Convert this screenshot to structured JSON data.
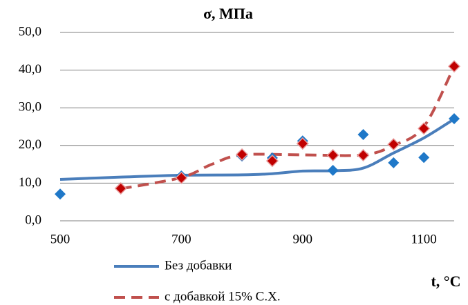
{
  "chart_data": {
    "type": "scatter",
    "title": "σ, МПа",
    "x_label": "t, °C",
    "xlim": [
      500,
      1150
    ],
    "xticks": [
      500,
      700,
      900,
      1100
    ],
    "ylim": [
      0,
      50
    ],
    "yticks": [
      {
        "value": 0,
        "label": "0,0"
      },
      {
        "value": 10,
        "label": "10,0"
      },
      {
        "value": 20,
        "label": "20,0"
      },
      {
        "value": 30,
        "label": "30,0"
      },
      {
        "value": 40,
        "label": "40,0"
      },
      {
        "value": 50,
        "label": "50,0"
      }
    ],
    "grid": true,
    "series": [
      {
        "name": "Без добавки",
        "color": "#4a7ebb",
        "style": "solid",
        "x": [
          500,
          600,
          700,
          800,
          850,
          900,
          950,
          1000,
          1050,
          1100,
          1150
        ],
        "values": [
          11.0,
          11.6,
          12.1,
          12.2,
          12.5,
          13.2,
          13.3,
          14.0,
          18.0,
          22.0,
          27.0
        ]
      },
      {
        "name": "с добавкой 15% С.Х.",
        "color": "#c0504d",
        "style": "dashed",
        "x": [
          600,
          700,
          750,
          800,
          900,
          1000,
          1050,
          1100,
          1150
        ],
        "values": [
          8.5,
          11.5,
          15.0,
          17.5,
          17.5,
          17.5,
          20.0,
          25.0,
          41.0
        ]
      },
      {
        "color": "#1f78c8",
        "marker": "diamond",
        "x": [
          500,
          700,
          800,
          850,
          900,
          950,
          1000,
          1050,
          1100,
          1150
        ],
        "values": [
          7.1,
          11.9,
          17.2,
          16.7,
          21.2,
          13.4,
          22.9,
          15.4,
          16.8,
          27.1
        ]
      },
      {
        "color": "#c00000",
        "marker": "diamond",
        "x": [
          600,
          700,
          800,
          850,
          900,
          950,
          1000,
          1050,
          1100,
          1150
        ],
        "values": [
          8.6,
          11.4,
          17.6,
          15.9,
          20.5,
          17.4,
          17.4,
          20.3,
          24.5,
          41.0
        ]
      }
    ]
  }
}
